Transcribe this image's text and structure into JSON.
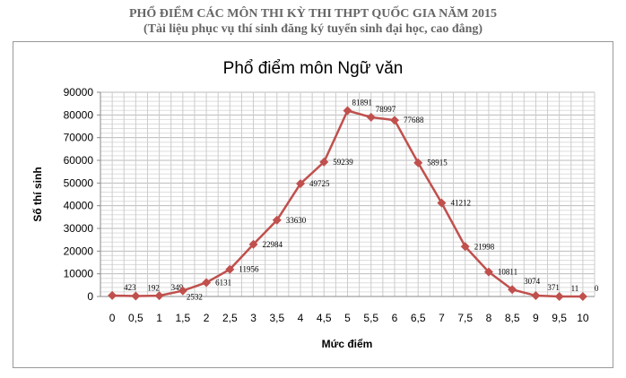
{
  "header": {
    "title": "PHỔ ĐIỂM CÁC MÔN THI KỲ THI THPT QUỐC GIA NĂM 2015",
    "subtitle": "(Tài liệu phục vụ thí sinh đăng ký tuyển sinh đại học, cao đẳng)"
  },
  "chart_data": {
    "type": "line",
    "title": "Phổ điểm môn Ngữ văn",
    "xlabel": "Mức điểm",
    "ylabel": "Số thí sinh",
    "categories": [
      "0",
      "0,5",
      "1",
      "1,5",
      "2",
      "2,5",
      "3",
      "3,5",
      "4",
      "4,5",
      "5",
      "5,5",
      "6",
      "6,5",
      "7",
      "7,5",
      "8",
      "8,5",
      "9",
      "9,5",
      "10"
    ],
    "values": [
      423,
      192,
      349,
      2532,
      6131,
      11956,
      22984,
      33630,
      49725,
      59239,
      81891,
      78997,
      77688,
      58915,
      41212,
      21998,
      10811,
      3074,
      371,
      11,
      0
    ],
    "ylim": [
      0,
      90000
    ],
    "yticks": [
      "0",
      "10000",
      "20000",
      "30000",
      "40000",
      "50000",
      "60000",
      "70000",
      "80000",
      "90000"
    ],
    "grid": true,
    "marker": "diamond",
    "line_color": "#C0504D"
  }
}
